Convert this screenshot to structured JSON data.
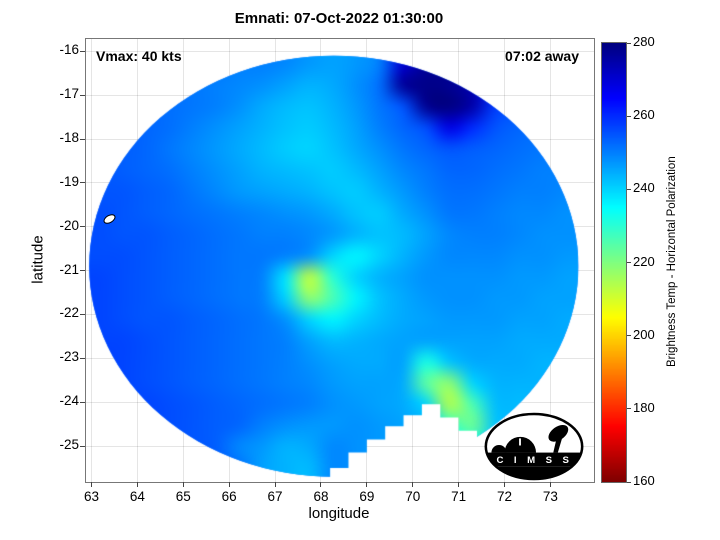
{
  "title": "Emnati: 07-Oct-2022 01:30:00",
  "annotations": {
    "vmax": "Vmax: 40 kts",
    "time_away": "07:02 away"
  },
  "axes": {
    "xlabel": "longitude",
    "ylabel": "latitude",
    "xlim": [
      62.88,
      73.95
    ],
    "ylim": [
      -25.82,
      -15.72
    ],
    "xticks": [
      63,
      64,
      65,
      66,
      67,
      68,
      69,
      70,
      71,
      72,
      73
    ],
    "yticks": [
      -16,
      -17,
      -18,
      -19,
      -20,
      -21,
      -22,
      -23,
      -24,
      -25
    ],
    "grid": true
  },
  "colorbar": {
    "label": "Brightness Temp - Horizontal Polarization",
    "min": 160,
    "max": 280,
    "ticks": [
      280,
      260,
      240,
      220,
      200,
      180,
      160
    ]
  },
  "logo": {
    "text": "C I M S S"
  },
  "chart_data": {
    "type": "heatmap",
    "quantity": "Brightness Temp - Horizontal Polarization (K)",
    "colormap": "jet_reversed",
    "value_range": [
      160,
      280
    ],
    "base_value": 252,
    "grid_extent": {
      "lon": [
        62.9,
        73.6
      ],
      "lat_top": -16.05,
      "lat_bottom": -25.75
    },
    "nx": 21,
    "ny": 20,
    "values": [
      [
        252,
        252,
        252,
        252,
        251,
        251,
        250,
        250,
        249,
        247,
        246,
        247,
        250,
        270,
        277,
        278,
        276,
        272,
        260,
        256,
        254
      ],
      [
        253,
        253,
        252,
        252,
        251,
        250,
        249,
        248,
        246,
        244,
        245,
        248,
        252,
        277,
        279,
        278,
        274,
        262,
        256,
        254,
        253
      ],
      [
        254,
        253,
        253,
        252,
        251,
        250,
        248,
        245,
        243,
        242,
        244,
        247,
        251,
        255,
        278,
        280,
        275,
        258,
        255,
        254,
        253
      ],
      [
        254,
        254,
        253,
        252,
        250,
        248,
        246,
        244,
        242,
        241,
        243,
        246,
        250,
        253,
        256,
        268,
        260,
        255,
        253,
        252,
        252
      ],
      [
        255,
        254,
        253,
        251,
        249,
        247,
        245,
        243,
        241,
        240,
        242,
        245,
        248,
        251,
        253,
        255,
        254,
        253,
        252,
        251,
        251
      ],
      [
        255,
        254,
        253,
        252,
        250,
        248,
        246,
        244,
        243,
        242,
        241,
        243,
        246,
        249,
        251,
        253,
        253,
        252,
        251,
        250,
        250
      ],
      [
        255,
        255,
        254,
        253,
        251,
        249,
        247,
        246,
        245,
        244,
        242,
        241,
        244,
        247,
        250,
        252,
        252,
        251,
        250,
        250,
        249
      ],
      [
        256,
        255,
        254,
        253,
        252,
        251,
        250,
        249,
        248,
        247,
        245,
        242,
        241,
        245,
        248,
        251,
        251,
        250,
        249,
        249,
        248
      ],
      [
        256,
        255,
        255,
        254,
        253,
        252,
        251,
        250,
        250,
        249,
        247,
        244,
        242,
        243,
        246,
        249,
        250,
        250,
        249,
        248,
        248
      ],
      [
        256,
        256,
        255,
        254,
        253,
        252,
        251,
        251,
        250,
        248,
        240,
        236,
        240,
        244,
        247,
        249,
        249,
        249,
        248,
        248,
        247
      ],
      [
        257,
        256,
        255,
        254,
        253,
        252,
        251,
        250,
        238,
        212,
        230,
        240,
        244,
        246,
        248,
        248,
        248,
        248,
        247,
        247,
        246
      ],
      [
        257,
        256,
        255,
        254,
        253,
        252,
        251,
        250,
        240,
        218,
        226,
        236,
        242,
        245,
        247,
        248,
        248,
        247,
        247,
        246,
        246
      ],
      [
        257,
        256,
        255,
        255,
        254,
        253,
        252,
        251,
        248,
        240,
        236,
        240,
        243,
        245,
        246,
        247,
        247,
        247,
        246,
        246,
        245
      ],
      [
        257,
        257,
        256,
        255,
        254,
        253,
        252,
        251,
        250,
        246,
        243,
        244,
        245,
        246,
        246,
        246,
        246,
        246,
        245,
        245,
        245
      ],
      [
        258,
        257,
        256,
        255,
        254,
        253,
        252,
        251,
        250,
        248,
        246,
        245,
        245,
        246,
        232,
        242,
        245,
        245,
        245,
        244,
        244
      ],
      [
        258,
        257,
        256,
        255,
        254,
        253,
        252,
        251,
        250,
        249,
        247,
        246,
        246,
        245,
        224,
        218,
        240,
        244,
        244,
        244,
        244
      ],
      [
        258,
        257,
        257,
        256,
        255,
        254,
        253,
        252,
        251,
        250,
        248,
        247,
        246,
        245,
        240,
        214,
        226,
        243,
        243,
        243,
        243
      ],
      [
        258,
        258,
        257,
        256,
        255,
        254,
        253,
        250,
        248,
        247,
        247,
        248,
        247,
        246,
        244,
        230,
        222,
        242,
        243,
        243,
        243
      ],
      [
        258,
        258,
        257,
        256,
        255,
        254,
        249,
        247,
        244,
        245,
        249,
        248,
        247,
        246,
        245,
        240,
        235,
        242,
        242,
        242,
        242
      ],
      [
        258,
        258,
        257,
        257,
        256,
        255,
        252,
        246,
        244,
        243,
        249,
        248,
        247,
        246,
        245,
        243,
        242,
        242,
        242,
        242,
        242
      ]
    ],
    "swath": {
      "center": [
        68.28,
        -20.9
      ],
      "rx": 5.33,
      "ry": 4.8,
      "notch": [
        [
          68.2,
          -26.2
        ],
        [
          68.2,
          -25.5
        ],
        [
          68.6,
          -25.5
        ],
        [
          68.6,
          -25.15
        ],
        [
          69.0,
          -25.15
        ],
        [
          69.0,
          -24.85
        ],
        [
          69.4,
          -24.85
        ],
        [
          69.4,
          -24.55
        ],
        [
          69.8,
          -24.55
        ],
        [
          69.8,
          -24.3
        ],
        [
          70.2,
          -24.3
        ],
        [
          70.2,
          -24.05
        ],
        [
          70.6,
          -24.05
        ],
        [
          70.6,
          -24.35
        ],
        [
          71.0,
          -24.35
        ],
        [
          71.0,
          -24.65
        ],
        [
          71.4,
          -24.65
        ],
        [
          71.4,
          -26.2
        ]
      ]
    },
    "marker": {
      "lon": 63.35,
      "lat": -19.8
    }
  }
}
